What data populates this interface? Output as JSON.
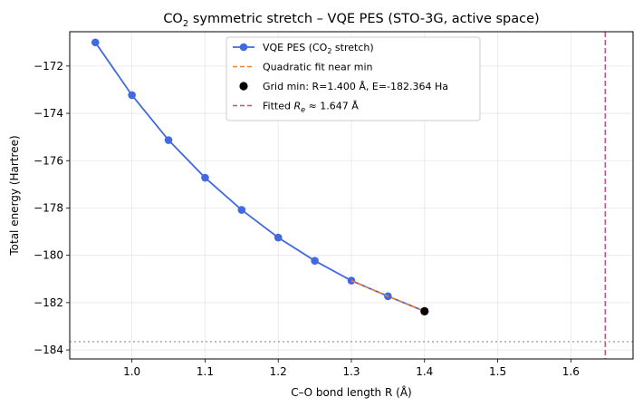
{
  "chart_data": {
    "type": "line",
    "title_parts": [
      "CO",
      "2",
      " symmetric stretch – VQE PES (STO-3G, active space)"
    ],
    "xlabel": "C–O bond length R (Å)",
    "ylabel": "Total energy (Hartree)",
    "xlim": [
      0.915,
      1.685
    ],
    "ylim": [
      -184.38,
      -170.55
    ],
    "xticks": [
      1.0,
      1.1,
      1.2,
      1.3,
      1.4,
      1.5,
      1.6
    ],
    "xtick_labels": [
      "1.0",
      "1.1",
      "1.2",
      "1.3",
      "1.4",
      "1.5",
      "1.6"
    ],
    "yticks": [
      -184,
      -182,
      -180,
      -178,
      -176,
      -174,
      -172
    ],
    "ytick_labels": [
      "−184",
      "−182",
      "−180",
      "−178",
      "−176",
      "−174",
      "−172"
    ],
    "grid": true,
    "legend_position": "upper center",
    "series": [
      {
        "kind": "line-marker",
        "color": "#4169e1",
        "x": [
          0.95,
          1.0,
          1.05,
          1.1,
          1.15,
          1.2,
          1.25,
          1.3,
          1.35,
          1.4
        ],
        "y": [
          -171.0,
          -173.23,
          -175.13,
          -176.72,
          -178.08,
          -179.25,
          -180.23,
          -181.07,
          -181.73,
          -182.364
        ]
      },
      {
        "kind": "dashed-line",
        "color": "#ff7f0e",
        "x": [
          1.3,
          1.35,
          1.4
        ],
        "y": [
          -181.07,
          -181.73,
          -182.364
        ]
      },
      {
        "kind": "point",
        "color": "#000000",
        "x": [
          1.4
        ],
        "y": [
          -182.364
        ]
      },
      {
        "kind": "vline",
        "color": "#dc4a6a",
        "x": 1.647
      },
      {
        "kind": "hline",
        "color": "#a0a0a0",
        "y": -183.65
      }
    ],
    "legend": [
      {
        "parts": [
          "VQE PES (CO",
          "2",
          " stretch)"
        ],
        "kind": "line-marker",
        "color": "#4169e1"
      },
      {
        "parts": [
          "Quadratic fit near min"
        ],
        "kind": "dashed-line",
        "color": "#ff7f0e"
      },
      {
        "parts": [
          "Grid min: R=1.400 Å, E=-182.364 Ha"
        ],
        "kind": "point",
        "color": "#000000"
      },
      {
        "parts": [
          "Fitted ",
          "R",
          "e",
          " ≈ 1.647 Å"
        ],
        "kind": "dashed-line",
        "color": "#dc4a6a"
      }
    ]
  }
}
